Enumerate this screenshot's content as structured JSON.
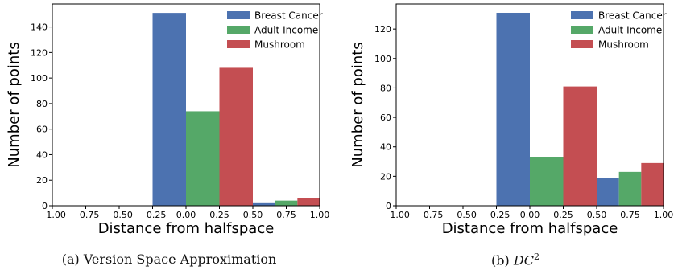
{
  "colors": {
    "Breast Cancer": "#4c72b0",
    "Adult Income": "#55a868",
    "Mushroom": "#c44e52",
    "axis": "#000000"
  },
  "captions": {
    "a_label": "(a)",
    "a_text": "Version Space Approximation",
    "b_label": "(b)",
    "b_text": "DC",
    "b_sup": "2"
  },
  "chart_data": [
    {
      "type": "bar",
      "title": "",
      "xlabel": "Distance from halfspace",
      "ylabel": "Number of points",
      "xlim": [
        -1.0,
        1.0
      ],
      "ylim": [
        0,
        158
      ],
      "xticks": [
        "−1.00",
        "−0.75",
        "−0.50",
        "−0.25",
        "0.00",
        "0.25",
        "0.50",
        "0.75",
        "1.00"
      ],
      "yticks": [
        0,
        20,
        40,
        60,
        80,
        100,
        120,
        140
      ],
      "legend": "top-right",
      "bin_edges": [
        -1.0,
        -0.25,
        0.5,
        1.0
      ],
      "series": [
        {
          "name": "Breast Cancer",
          "values": [
            0,
            151,
            2
          ]
        },
        {
          "name": "Adult Income",
          "values": [
            0,
            74,
            4
          ]
        },
        {
          "name": "Mushroom",
          "values": [
            0,
            108,
            6
          ]
        }
      ]
    },
    {
      "type": "bar",
      "title": "",
      "xlabel": "Distance from halfspace",
      "ylabel": "Number of points",
      "xlim": [
        -1.0,
        1.0
      ],
      "ylim": [
        0,
        137
      ],
      "xticks": [
        "−1.00",
        "−0.75",
        "−0.50",
        "−0.25",
        "0.00",
        "0.25",
        "0.50",
        "0.75",
        "1.00"
      ],
      "yticks": [
        0,
        20,
        40,
        60,
        80,
        100,
        120
      ],
      "legend": "top-right",
      "bin_edges": [
        -1.0,
        -0.25,
        0.5,
        1.0
      ],
      "series": [
        {
          "name": "Breast Cancer",
          "values": [
            0,
            131,
            19
          ]
        },
        {
          "name": "Adult Income",
          "values": [
            0,
            33,
            23
          ]
        },
        {
          "name": "Mushroom",
          "values": [
            0,
            81,
            29
          ]
        }
      ]
    }
  ]
}
